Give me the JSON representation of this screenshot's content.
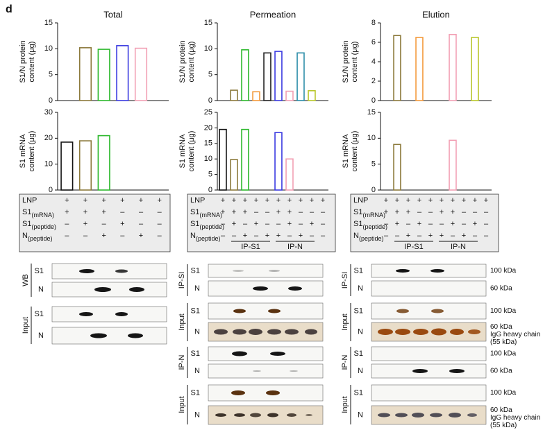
{
  "panel_label": "d",
  "chart_data": [
    {
      "type": "bar",
      "title": "Total",
      "ylabel": [
        "S1/N protein",
        "content (μg)"
      ],
      "categories": [
        null,
        null,
        null,
        null,
        null,
        null
      ],
      "values": [
        0,
        10.2,
        9.9,
        10.6,
        10.1,
        0
      ],
      "colors": [
        "#111111",
        "#8c7a3c",
        "#2db82d",
        "#3a3ae0",
        "#f2a0b4",
        "#111111"
      ],
      "ylim": [
        0,
        15
      ],
      "yticks": [
        0,
        5,
        10,
        15
      ]
    },
    {
      "type": "bar",
      "title": "Permeation",
      "ylabel": [
        "S1/N protein",
        "content (μg)"
      ],
      "categories": [
        null,
        null,
        null,
        null,
        null,
        null,
        null,
        null,
        null,
        null
      ],
      "values": [
        0,
        2.0,
        9.8,
        1.7,
        9.2,
        9.5,
        1.8,
        9.2,
        1.9,
        0
      ],
      "colors": [
        "#111111",
        "#8c7a3c",
        "#2db82d",
        "#f39a3c",
        "#222222",
        "#3a3ae0",
        "#f2a0b4",
        "#2a8ca8",
        "#b8c62a",
        "#111111"
      ],
      "ylim": [
        0,
        15
      ],
      "yticks": [
        0,
        5,
        10,
        15
      ]
    },
    {
      "type": "bar",
      "title": "Elution",
      "ylabel": [
        "S1/N protein",
        "content (μg)"
      ],
      "categories": [
        null,
        null,
        null,
        null,
        null,
        null,
        null,
        null,
        null,
        null
      ],
      "values": [
        0,
        6.7,
        0,
        6.5,
        0,
        0,
        6.8,
        0,
        6.5,
        0
      ],
      "colors": [
        "#111111",
        "#8c7a3c",
        "#2db82d",
        "#f39a3c",
        "#222222",
        "#3a3ae0",
        "#f2a0b4",
        "#2a8ca8",
        "#b8c62a",
        "#111111"
      ],
      "ylim": [
        0,
        8
      ],
      "yticks": [
        0,
        2,
        4,
        6,
        8
      ]
    },
    {
      "type": "bar",
      "ylabel": [
        "S1 mRNA",
        "content (μg)"
      ],
      "categories": [
        null,
        null,
        null,
        null,
        null,
        null
      ],
      "values": [
        18.5,
        19,
        21,
        0,
        0,
        0
      ],
      "colors": [
        "#111111",
        "#8c7a3c",
        "#2db82d",
        "#3a3ae0",
        "#f2a0b4",
        "#111111"
      ],
      "ylim": [
        0,
        30
      ],
      "yticks": [
        0,
        10,
        20,
        30
      ]
    },
    {
      "type": "bar",
      "ylabel": [
        "S1 mRNA",
        "content (μg)"
      ],
      "categories": [
        null,
        null,
        null,
        null,
        null,
        null,
        null,
        null,
        null,
        null
      ],
      "values": [
        19.5,
        9.8,
        19.5,
        0,
        0,
        18.5,
        10,
        0,
        0,
        0
      ],
      "colors": [
        "#111111",
        "#8c7a3c",
        "#2db82d",
        "#f39a3c",
        "#222222",
        "#3a3ae0",
        "#f2a0b4",
        "#2a8ca8",
        "#b8c62a",
        "#111111"
      ],
      "ylim": [
        0,
        25
      ],
      "yticks": [
        0,
        5,
        10,
        15,
        20,
        25
      ]
    },
    {
      "type": "bar",
      "ylabel": [
        "S1 mRNA",
        "content (μg)"
      ],
      "categories": [
        null,
        null,
        null,
        null,
        null,
        null,
        null,
        null,
        null,
        null
      ],
      "values": [
        0,
        8.8,
        0,
        0,
        0,
        0,
        9.6,
        0,
        0,
        0
      ],
      "colors": [
        "#111111",
        "#8c7a3c",
        "#2db82d",
        "#f39a3c",
        "#222222",
        "#3a3ae0",
        "#f2a0b4",
        "#2a8ca8",
        "#b8c62a",
        "#111111"
      ],
      "ylim": [
        0,
        15
      ],
      "yticks": [
        0,
        5,
        10,
        15
      ]
    }
  ],
  "tables": [
    {
      "rows": [
        {
          "label": {
            "main": "LNP"
          },
          "signs": [
            "+",
            "+",
            "+",
            "+",
            "+",
            "+"
          ]
        },
        {
          "label": {
            "main": "S1",
            "sub": "(mRNA)"
          },
          "signs": [
            "+",
            "+",
            "+",
            "–",
            "–",
            "–"
          ]
        },
        {
          "label": {
            "main": "S1",
            "sub": "(peptide)"
          },
          "signs": [
            "–",
            "+",
            "–",
            "+",
            "–",
            "–"
          ]
        },
        {
          "label": {
            "main": "N",
            "sub": "(peptide)"
          },
          "signs": [
            "–",
            "–",
            "+",
            "–",
            "+",
            "–"
          ]
        }
      ]
    },
    {
      "rows": [
        {
          "label": {
            "main": "LNP"
          },
          "signs": [
            "+",
            "+",
            "+",
            "+",
            "+",
            "+",
            "+",
            "+",
            "+",
            "+"
          ]
        },
        {
          "label": {
            "main": "S1",
            "sub": "(mRNA)"
          },
          "signs": [
            "+",
            "+",
            "+",
            "–",
            "–",
            "+",
            "+",
            "–",
            "–",
            "–"
          ]
        },
        {
          "label": {
            "main": "S1",
            "sub": "(peptide)"
          },
          "signs": [
            "–",
            "+",
            "–",
            "+",
            "–",
            "–",
            "+",
            "–",
            "+",
            "–"
          ]
        },
        {
          "label": {
            "main": "N",
            "sub": "(peptide)"
          },
          "signs": [
            "–",
            "–",
            "+",
            "–",
            "+",
            "+",
            "–",
            "+",
            "–",
            "–"
          ]
        }
      ],
      "groups": [
        "IP-S1",
        "IP-N"
      ]
    },
    {
      "rows": [
        {
          "label": {
            "main": "LNP"
          },
          "signs": [
            "+",
            "+",
            "+",
            "+",
            "+",
            "+",
            "+",
            "+",
            "+",
            "+"
          ]
        },
        {
          "label": {
            "main": "S1",
            "sub": "(mRNA)"
          },
          "signs": [
            "+",
            "+",
            "+",
            "–",
            "–",
            "+",
            "+",
            "–",
            "–",
            "–"
          ]
        },
        {
          "label": {
            "main": "S1",
            "sub": "(peptide)"
          },
          "signs": [
            "–",
            "+",
            "–",
            "+",
            "–",
            "–",
            "+",
            "–",
            "+",
            "–"
          ]
        },
        {
          "label": {
            "main": "N",
            "sub": "(peptide)"
          },
          "signs": [
            "–",
            "–",
            "+",
            "–",
            "+",
            "+",
            "–",
            "+",
            "–",
            "–"
          ]
        }
      ],
      "groups": [
        "IP-S1",
        "IP-N"
      ]
    }
  ],
  "blots": [
    {
      "groups": [
        {
          "label": "WB",
          "rows": [
            {
              "label": "S1"
            },
            {
              "label": "N"
            }
          ]
        },
        {
          "label": "Input",
          "rows": [
            {
              "label": "S1"
            },
            {
              "label": "N"
            }
          ]
        }
      ]
    },
    {
      "groups": [
        {
          "label": "IP-SI",
          "rows": [
            {
              "label": "S1"
            },
            {
              "label": "N"
            }
          ]
        },
        {
          "label": "Input",
          "rows": [
            {
              "label": "S1"
            },
            {
              "label": "N"
            }
          ]
        },
        {
          "label": "IP-N",
          "rows": [
            {
              "label": "S1"
            },
            {
              "label": "N"
            }
          ]
        },
        {
          "label": "Input",
          "rows": [
            {
              "label": "S1"
            },
            {
              "label": "N"
            }
          ]
        }
      ]
    },
    {
      "groups": [
        {
          "label": "IP-SI",
          "rows": [
            {
              "label": "S1",
              "marker": [
                "100 kDa"
              ]
            },
            {
              "label": "N",
              "marker": [
                "60 kDa"
              ]
            }
          ]
        },
        {
          "label": "Input",
          "rows": [
            {
              "label": "S1",
              "marker": [
                "100 kDa"
              ]
            },
            {
              "label": "N",
              "marker": [
                "60 kDa",
                "IgG heavy chain",
                "(55 kDa)"
              ]
            }
          ]
        },
        {
          "label": "IP-N",
          "rows": [
            {
              "label": "S1",
              "marker": [
                "100 kDa"
              ]
            },
            {
              "label": "N",
              "marker": [
                "60 kDa"
              ]
            }
          ]
        },
        {
          "label": "Input",
          "rows": [
            {
              "label": "S1",
              "marker": [
                "100 kDa"
              ]
            },
            {
              "label": "N",
              "marker": [
                "60 kDa",
                "IgG heavy chain",
                "(55 kDa)"
              ]
            }
          ]
        }
      ]
    }
  ]
}
